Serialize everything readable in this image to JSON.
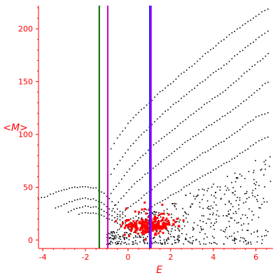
{
  "chart_data": {
    "type": "scatter",
    "title": "",
    "xlabel": "E",
    "ylabel": "<M>",
    "xlim": [
      -4.2,
      6.8
    ],
    "ylim": [
      -8,
      222
    ],
    "x_ticks": [
      "-4",
      "-2",
      "0",
      "2",
      "4",
      "6"
    ],
    "x_tick_values": [
      -4,
      -2,
      0,
      2,
      4,
      6
    ],
    "y_ticks": [
      "0",
      "50",
      "100",
      "150",
      "200"
    ],
    "y_tick_values": [
      0,
      50,
      100,
      150,
      200
    ],
    "grid": false,
    "colors": {
      "axes": "#ff0000",
      "black_points": "#000000",
      "red_points": "#ff0000",
      "green_line": "#006400",
      "magenta_line": "#cc00cc",
      "blue_line": "#2222ff",
      "violet_line": "#aa00ff"
    },
    "vertical_lines": [
      {
        "x": -1.35,
        "color": "#006400"
      },
      {
        "x": -0.95,
        "color": "#cc00cc"
      },
      {
        "x": 1.02,
        "color": "#2222ff"
      },
      {
        "x": 1.08,
        "color": "#aa00ff"
      }
    ],
    "bands": [
      {
        "points": [
          [
            -0.95,
            82
          ],
          [
            -0.5,
            96
          ],
          [
            0,
            110
          ],
          [
            0.5,
            121
          ],
          [
            1,
            130
          ],
          [
            1.5,
            140
          ],
          [
            2,
            148
          ],
          [
            2.5,
            157
          ],
          [
            3,
            165
          ],
          [
            3.5,
            174
          ],
          [
            4,
            182
          ],
          [
            4.5,
            190
          ],
          [
            5,
            198
          ],
          [
            5.5,
            205
          ],
          [
            6,
            212
          ],
          [
            6.7,
            221
          ]
        ]
      },
      {
        "points": [
          [
            -0.95,
            58
          ],
          [
            -0.5,
            72
          ],
          [
            0,
            86
          ],
          [
            0.5,
            97
          ],
          [
            1,
            107
          ],
          [
            1.5,
            117
          ],
          [
            2,
            126
          ],
          [
            2.5,
            134
          ],
          [
            3,
            142
          ],
          [
            3.5,
            150
          ],
          [
            4,
            158
          ],
          [
            4.5,
            165
          ],
          [
            5,
            174
          ],
          [
            5.5,
            182
          ],
          [
            6,
            190
          ],
          [
            6.7,
            199
          ]
        ]
      },
      {
        "points": [
          [
            -0.8,
            44
          ],
          [
            -0.3,
            58
          ],
          [
            0.2,
            70
          ],
          [
            0.7,
            80
          ],
          [
            1.2,
            90
          ],
          [
            1.7,
            98
          ],
          [
            2.2,
            106
          ],
          [
            2.7,
            114
          ],
          [
            3.2,
            122
          ],
          [
            3.7,
            130
          ],
          [
            4.2,
            137
          ],
          [
            4.7,
            144
          ],
          [
            5.2,
            153
          ],
          [
            5.7,
            162
          ],
          [
            6.2,
            170
          ],
          [
            6.7,
            178
          ]
        ]
      },
      {
        "points": [
          [
            -0.7,
            30
          ],
          [
            -0.2,
            42
          ],
          [
            0.3,
            53
          ],
          [
            0.8,
            62
          ],
          [
            1.3,
            70
          ],
          [
            1.8,
            78
          ],
          [
            2.3,
            86
          ],
          [
            2.8,
            94
          ],
          [
            3.3,
            101
          ],
          [
            3.8,
            108
          ],
          [
            4.3,
            115
          ],
          [
            4.8,
            121
          ],
          [
            5.3,
            129
          ],
          [
            5.8,
            137
          ],
          [
            6.3,
            146
          ],
          [
            6.7,
            152
          ]
        ]
      },
      {
        "points": [
          [
            -0.5,
            22
          ],
          [
            0,
            30
          ],
          [
            0.5,
            38
          ],
          [
            1,
            46
          ],
          [
            1.5,
            54
          ],
          [
            2,
            61
          ],
          [
            2.5,
            68
          ],
          [
            3,
            75
          ],
          [
            3.5,
            82
          ],
          [
            4,
            88
          ],
          [
            4.5,
            94
          ],
          [
            5,
            101
          ],
          [
            5.5,
            109
          ],
          [
            6,
            116
          ],
          [
            6.7,
            122
          ]
        ]
      },
      {
        "points": [
          [
            0,
            18
          ],
          [
            0.5,
            24
          ],
          [
            1,
            30
          ],
          [
            1.5,
            36
          ],
          [
            2,
            42
          ],
          [
            2.5,
            48
          ],
          [
            3,
            54
          ],
          [
            3.5,
            60
          ],
          [
            4,
            66
          ],
          [
            4.5,
            72
          ],
          [
            5,
            78
          ],
          [
            5.5,
            85
          ],
          [
            6,
            92
          ],
          [
            6.7,
            99
          ]
        ]
      },
      {
        "points": [
          [
            -4.2,
            39
          ],
          [
            -3.5,
            44
          ],
          [
            -3,
            48
          ],
          [
            -2.5,
            50
          ],
          [
            -2,
            51
          ],
          [
            -1.5,
            49
          ],
          [
            -1,
            42
          ],
          [
            -0.5,
            30
          ],
          [
            0,
            20
          ]
        ]
      },
      {
        "points": [
          [
            -3.4,
            30
          ],
          [
            -3,
            34
          ],
          [
            -2.5,
            38
          ],
          [
            -2,
            40
          ],
          [
            -1.5,
            38
          ],
          [
            -1,
            32
          ],
          [
            -0.5,
            24
          ],
          [
            0,
            17
          ]
        ]
      },
      {
        "points": [
          [
            -2.8,
            27
          ],
          [
            -2.4,
            30
          ],
          [
            -2,
            32
          ],
          [
            -1.5,
            31
          ],
          [
            -1,
            26
          ],
          [
            -0.5,
            20
          ],
          [
            0,
            15
          ]
        ]
      },
      {
        "points": [
          [
            -2.3,
            24
          ],
          [
            -2,
            26
          ],
          [
            -1.5,
            25
          ],
          [
            -1,
            21
          ],
          [
            -0.5,
            16
          ],
          [
            0,
            13
          ]
        ]
      }
    ],
    "red_cluster": {
      "center": [
        1.0,
        14
      ],
      "spread": [
        0.55,
        8
      ],
      "count": 260,
      "x_range": [
        -0.6,
        2.6
      ],
      "y_range": [
        -2,
        48
      ]
    },
    "black_scatter": {
      "x_range": [
        -1.0,
        6.7
      ],
      "y_range": [
        -4,
        90
      ],
      "count": 520
    }
  }
}
